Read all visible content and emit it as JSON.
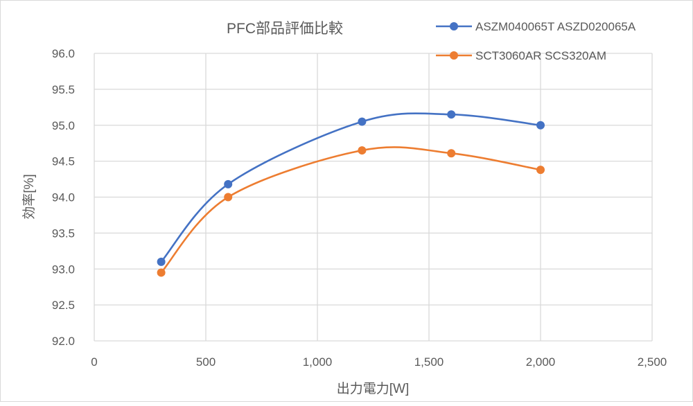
{
  "chart_data": {
    "type": "line",
    "title": "PFC部品評価比較",
    "xlabel": "出力電力[W]",
    "ylabel": "効率[%]",
    "xlim": [
      0,
      2500
    ],
    "ylim": [
      92.0,
      96.0
    ],
    "x_ticks": [
      "0",
      "500",
      "1,000",
      "1,500",
      "2,000",
      "2,500"
    ],
    "x_tick_values": [
      0,
      500,
      1000,
      1500,
      2000,
      2500
    ],
    "y_ticks": [
      "92.0",
      "92.5",
      "93.0",
      "93.5",
      "94.0",
      "94.5",
      "95.0",
      "95.5",
      "96.0"
    ],
    "y_tick_values": [
      92.0,
      92.5,
      93.0,
      93.5,
      94.0,
      94.5,
      95.0,
      95.5,
      96.0
    ],
    "grid": true,
    "smooth": true,
    "legend_position": "top-right",
    "x": [
      300,
      600,
      1200,
      1600,
      2000
    ],
    "series": [
      {
        "name": "ASZM040065T ASZD020065A",
        "color": "#4472C4",
        "values": [
          93.1,
          94.18,
          95.05,
          95.15,
          95.0
        ]
      },
      {
        "name": "SCT3060AR SCS320AM",
        "color": "#ED7D31",
        "values": [
          92.95,
          94.0,
          94.65,
          94.61,
          94.38
        ]
      }
    ]
  }
}
